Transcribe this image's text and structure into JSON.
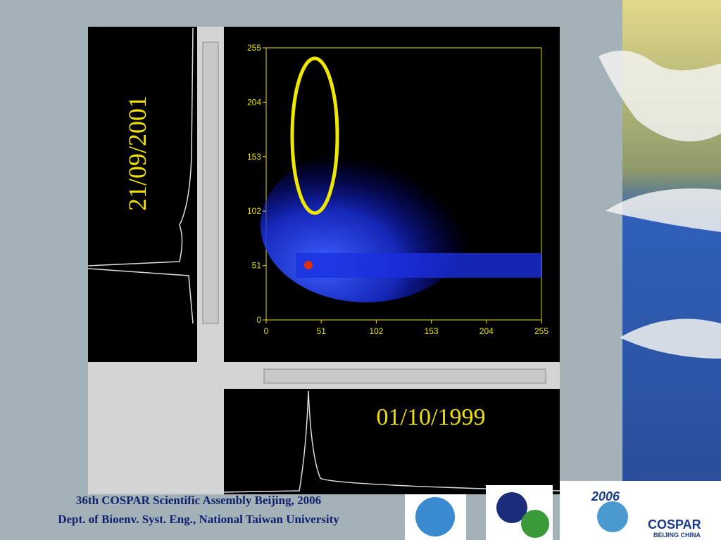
{
  "left_panel": {
    "date": "21/09/2001"
  },
  "bottom_panel": {
    "date": "01/10/1999"
  },
  "plot": {
    "xlim": [
      0,
      255
    ],
    "ylim": [
      0,
      255
    ],
    "xticks": [
      0,
      51,
      102,
      153,
      204,
      255
    ],
    "yticks": [
      0,
      51,
      102,
      153,
      204,
      255
    ]
  },
  "footer": {
    "line1": "36th COSPAR  Scientific Assembly Beijing, 2006",
    "line2": "Dept. of Bioenv. Syst. Eng., National Taiwan University"
  },
  "logo": {
    "year": "2006",
    "name": "COSPAR",
    "place": "BEIJING CHINA"
  }
}
